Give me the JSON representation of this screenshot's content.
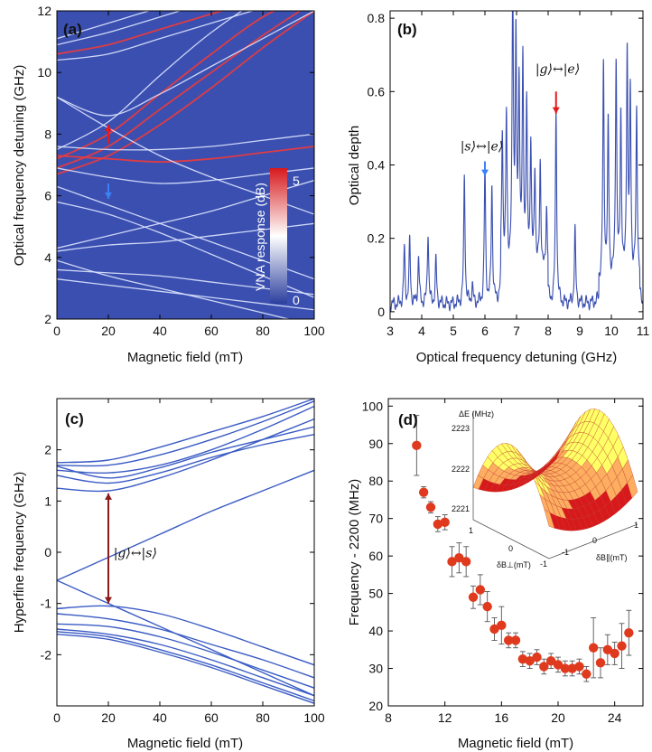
{
  "chart_data": [
    {
      "panel": "(a)",
      "type": "heatmap",
      "xlabel": "Magnetic field (mT)",
      "ylabel": "Optical frequency detuning  (GHz)",
      "xlim": [
        0,
        100
      ],
      "ylim": [
        2,
        12
      ],
      "xticks": [
        0,
        20,
        40,
        60,
        80,
        100
      ],
      "yticks": [
        2,
        4,
        6,
        8,
        10,
        12
      ],
      "colorbar": {
        "label": "VNA response (dB)",
        "min": 0,
        "max": 5,
        "ticks": [
          0,
          5
        ],
        "colors": [
          "#2c3f9e",
          "#ffffff",
          "#d7191c"
        ]
      },
      "background_color": "#3a4fb0",
      "line_color": "#dfe6ff",
      "hot_color": "#f03a3a",
      "lines": [
        {
          "x": [
            0,
            20,
            40,
            60,
            80,
            100
          ],
          "y": [
            6.7,
            7.3,
            8.3,
            9.5,
            10.8,
            12.0
          ],
          "strength": "hot"
        },
        {
          "x": [
            0,
            20,
            40,
            60,
            80,
            100
          ],
          "y": [
            6.9,
            7.6,
            8.8,
            10.0,
            11.2,
            12.3
          ],
          "strength": "hot"
        },
        {
          "x": [
            0,
            20,
            40,
            60,
            80,
            100
          ],
          "y": [
            7.2,
            8.0,
            9.3,
            10.6,
            11.8,
            12.6
          ],
          "strength": "hot"
        },
        {
          "x": [
            0,
            20,
            40,
            60,
            80,
            100
          ],
          "y": [
            7.5,
            8.4,
            9.9,
            11.3,
            12.4,
            13.0
          ],
          "strength": "normal"
        },
        {
          "x": [
            0,
            20,
            40,
            60,
            80,
            100
          ],
          "y": [
            9.2,
            8.6,
            9.3,
            10.2,
            11.1,
            12.0
          ],
          "strength": "normal"
        },
        {
          "x": [
            0,
            20,
            40,
            60,
            80,
            100
          ],
          "y": [
            10.4,
            10.6,
            11.1,
            11.6,
            12.1,
            12.6
          ],
          "strength": "normal"
        },
        {
          "x": [
            0,
            20,
            40,
            60,
            80,
            100
          ],
          "y": [
            10.6,
            10.9,
            11.4,
            11.9,
            12.4,
            12.9
          ],
          "strength": "hot"
        },
        {
          "x": [
            0,
            20,
            40,
            60,
            80,
            100
          ],
          "y": [
            10.9,
            11.3,
            11.8,
            12.3,
            12.7,
            13.1
          ],
          "strength": "normal"
        },
        {
          "x": [
            0,
            20,
            40,
            60,
            80,
            100
          ],
          "y": [
            11.1,
            11.6,
            12.1,
            12.5,
            12.9,
            13.3
          ],
          "strength": "normal"
        },
        {
          "x": [
            0,
            20,
            40,
            60,
            80,
            100
          ],
          "y": [
            7.3,
            7.2,
            7.1,
            7.2,
            7.4,
            7.6
          ],
          "strength": "hot"
        },
        {
          "x": [
            0,
            20,
            40,
            60,
            80,
            100
          ],
          "y": [
            7.6,
            7.5,
            7.5,
            7.6,
            7.8,
            8.0
          ],
          "strength": "normal"
        },
        {
          "x": [
            0,
            20,
            40,
            60,
            80,
            100
          ],
          "y": [
            6.9,
            6.6,
            6.4,
            6.5,
            6.7,
            6.9
          ],
          "strength": "normal"
        },
        {
          "x": [
            0,
            20,
            40,
            60,
            80,
            100
          ],
          "y": [
            9.2,
            8.2,
            7.3,
            6.6,
            6.0,
            5.4
          ],
          "strength": "normal"
        },
        {
          "x": [
            0,
            20,
            40,
            60,
            80,
            100
          ],
          "y": [
            6.3,
            5.7,
            5.1,
            4.5,
            3.9,
            3.3
          ],
          "strength": "normal"
        },
        {
          "x": [
            0,
            20,
            40,
            60,
            80,
            100
          ],
          "y": [
            5.8,
            5.4,
            4.8,
            4.1,
            3.4,
            2.7
          ],
          "strength": "normal"
        },
        {
          "x": [
            0,
            20,
            40,
            60,
            80,
            100
          ],
          "y": [
            4.3,
            4.7,
            5.1,
            5.5,
            6.0,
            6.5
          ],
          "strength": "normal"
        },
        {
          "x": [
            0,
            20,
            40,
            60,
            80,
            100
          ],
          "y": [
            3.6,
            3.5,
            3.4,
            3.2,
            3.0,
            2.8
          ],
          "strength": "normal"
        },
        {
          "x": [
            0,
            20,
            40,
            60,
            80,
            100
          ],
          "y": [
            3.9,
            3.4,
            3.0,
            2.6,
            2.2,
            1.8
          ],
          "strength": "normal"
        },
        {
          "x": [
            0,
            20,
            40,
            60,
            80,
            100
          ],
          "y": [
            3.3,
            3.1,
            2.9,
            2.7,
            2.5,
            2.3
          ],
          "strength": "normal"
        },
        {
          "x": [
            0,
            20,
            40,
            60,
            80,
            100
          ],
          "y": [
            4.2,
            4.4,
            4.5,
            4.7,
            4.9,
            5.1
          ],
          "strength": "normal"
        }
      ],
      "arrows": [
        {
          "x": 20,
          "y_from": 7.7,
          "y_to": 8.3,
          "color": "#e41a1c"
        },
        {
          "x": 20,
          "y_from": 6.4,
          "y_to": 5.9,
          "color": "#3b82f6"
        }
      ]
    },
    {
      "panel": "(b)",
      "type": "line",
      "xlabel": "Optical frequency detuning (GHz)",
      "ylabel": "Optical depth",
      "xlim": [
        3,
        11
      ],
      "ylim": [
        -0.02,
        0.82
      ],
      "xticks": [
        3,
        4,
        5,
        6,
        7,
        8,
        9,
        10,
        11
      ],
      "yticks": [
        0,
        0.2,
        0.4,
        0.6,
        0.8
      ],
      "color": "#3a4fb0",
      "baseline": 0.02,
      "peaks": [
        {
          "x": 3.45,
          "h": 0.15
        },
        {
          "x": 3.62,
          "h": 0.17
        },
        {
          "x": 3.9,
          "h": 0.13
        },
        {
          "x": 4.2,
          "h": 0.2
        },
        {
          "x": 4.45,
          "h": 0.12
        },
        {
          "x": 5.35,
          "h": 0.35
        },
        {
          "x": 5.6,
          "h": 0.05
        },
        {
          "x": 6.0,
          "h": 0.37
        },
        {
          "x": 6.22,
          "h": 0.32
        },
        {
          "x": 6.55,
          "h": 0.38
        },
        {
          "x": 6.68,
          "h": 0.42
        },
        {
          "x": 6.88,
          "h": 0.78
        },
        {
          "x": 6.98,
          "h": 0.6
        },
        {
          "x": 7.08,
          "h": 0.5
        },
        {
          "x": 7.2,
          "h": 0.55
        },
        {
          "x": 7.32,
          "h": 0.44
        },
        {
          "x": 7.45,
          "h": 0.35
        },
        {
          "x": 7.58,
          "h": 0.28
        },
        {
          "x": 7.75,
          "h": 0.3
        },
        {
          "x": 7.95,
          "h": 0.18
        },
        {
          "x": 8.25,
          "h": 0.53
        },
        {
          "x": 8.85,
          "h": 0.2
        },
        {
          "x": 9.75,
          "h": 0.58
        },
        {
          "x": 9.9,
          "h": 0.42
        },
        {
          "x": 10.15,
          "h": 0.6
        },
        {
          "x": 10.3,
          "h": 0.45
        },
        {
          "x": 10.5,
          "h": 0.62
        },
        {
          "x": 10.6,
          "h": 0.5
        },
        {
          "x": 10.8,
          "h": 0.47
        }
      ],
      "annotations": [
        {
          "text": "|s⟩↔|e⟩",
          "x": 5.9,
          "y": 0.44
        },
        {
          "text": "|g⟩↔|e⟩",
          "x": 8.3,
          "y": 0.65
        }
      ],
      "arrows": [
        {
          "x": 6.0,
          "y_from": 0.41,
          "y_to": 0.37,
          "color": "#3b82f6"
        },
        {
          "x": 8.25,
          "y_from": 0.6,
          "y_to": 0.54,
          "color": "#e41a1c"
        }
      ]
    },
    {
      "panel": "(c)",
      "type": "line",
      "xlabel": "Magnetic field (mT)",
      "ylabel": "Hyperfine frequency  (GHz)",
      "xlim": [
        0,
        100
      ],
      "ylim": [
        -3,
        3
      ],
      "xticks": [
        0,
        20,
        40,
        60,
        80,
        100
      ],
      "yticks": [
        -2,
        -1,
        0,
        1,
        2
      ],
      "color": "#3a5bc4",
      "series": [
        {
          "x": [
            0,
            20,
            40,
            60,
            80,
            100
          ],
          "y": [
            1.25,
            1.2,
            1.45,
            1.8,
            2.2,
            2.6
          ]
        },
        {
          "x": [
            0,
            20,
            40,
            60,
            80,
            100
          ],
          "y": [
            1.6,
            1.55,
            1.7,
            2.0,
            2.4,
            2.85
          ]
        },
        {
          "x": [
            0,
            20,
            40,
            60,
            80,
            100
          ],
          "y": [
            1.7,
            1.7,
            1.9,
            2.2,
            2.55,
            2.95
          ]
        },
        {
          "x": [
            0,
            20,
            40,
            60,
            80,
            100
          ],
          "y": [
            1.75,
            1.8,
            2.05,
            2.35,
            2.65,
            3.0
          ]
        },
        {
          "x": [
            0,
            20,
            40,
            60,
            80,
            100
          ],
          "y": [
            1.5,
            1.35,
            1.55,
            1.85,
            2.1,
            2.3
          ]
        },
        {
          "x": [
            0,
            20,
            40,
            60,
            80,
            100
          ],
          "y": [
            1.68,
            1.45,
            1.65,
            1.95,
            2.2,
            2.45
          ]
        },
        {
          "x": [
            0,
            20,
            40,
            60,
            80,
            100
          ],
          "y": [
            -0.55,
            -0.1,
            0.35,
            0.8,
            1.2,
            1.6
          ]
        },
        {
          "x": [
            0,
            20,
            40,
            60,
            80,
            100
          ],
          "y": [
            -0.55,
            -1.0,
            -1.45,
            -1.9,
            -2.35,
            -2.8
          ]
        },
        {
          "x": [
            0,
            20,
            40,
            60,
            80,
            100
          ],
          "y": [
            -1.1,
            -1.05,
            -1.2,
            -1.5,
            -1.85,
            -2.2
          ]
        },
        {
          "x": [
            0,
            20,
            40,
            60,
            80,
            100
          ],
          "y": [
            -1.2,
            -1.3,
            -1.5,
            -1.8,
            -2.1,
            -2.45
          ]
        },
        {
          "x": [
            0,
            20,
            40,
            60,
            80,
            100
          ],
          "y": [
            -1.4,
            -1.45,
            -1.65,
            -1.95,
            -2.3,
            -2.65
          ]
        },
        {
          "x": [
            0,
            20,
            40,
            60,
            80,
            100
          ],
          "y": [
            -1.5,
            -1.6,
            -1.8,
            -2.1,
            -2.45,
            -2.8
          ]
        },
        {
          "x": [
            0,
            20,
            40,
            60,
            80,
            100
          ],
          "y": [
            -1.55,
            -1.65,
            -1.9,
            -2.2,
            -2.55,
            -2.9
          ]
        },
        {
          "x": [
            0,
            20,
            40,
            60,
            80,
            100
          ],
          "y": [
            -1.6,
            -1.7,
            -1.95,
            -2.25,
            -2.6,
            -2.95
          ]
        }
      ],
      "annotations": [
        {
          "text": "|g⟩↔|s⟩",
          "x": 22,
          "y": -0.1
        }
      ],
      "arrows": [
        {
          "x": 20,
          "y_from": 1.15,
          "y_to": -1.0,
          "color": "#8b1a1a",
          "double": true
        }
      ]
    },
    {
      "panel": "(d)",
      "type": "scatter",
      "xlabel": "Magnetic field (mT)",
      "ylabel": "Frequency - 2200 (MHz)",
      "xlim": [
        8,
        26
      ],
      "ylim": [
        20,
        102
      ],
      "xticks": [
        8,
        12,
        16,
        20,
        24
      ],
      "yticks": [
        20,
        30,
        40,
        50,
        60,
        70,
        80,
        90,
        100
      ],
      "color": "#e03a1e",
      "points": [
        {
          "x": 10.0,
          "y": 89.5,
          "err": 8
        },
        {
          "x": 10.5,
          "y": 77,
          "err": 1.5
        },
        {
          "x": 11.0,
          "y": 73,
          "err": 1.5
        },
        {
          "x": 11.5,
          "y": 68.5,
          "err": 2
        },
        {
          "x": 12.0,
          "y": 69,
          "err": 2
        },
        {
          "x": 12.5,
          "y": 58.5,
          "err": 4
        },
        {
          "x": 13.0,
          "y": 59.5,
          "err": 4
        },
        {
          "x": 13.5,
          "y": 58.5,
          "err": 4
        },
        {
          "x": 14.0,
          "y": 49,
          "err": 3
        },
        {
          "x": 14.5,
          "y": 51,
          "err": 4
        },
        {
          "x": 15.0,
          "y": 46.5,
          "err": 4
        },
        {
          "x": 15.5,
          "y": 40.5,
          "err": 3
        },
        {
          "x": 16.0,
          "y": 41.5,
          "err": 5
        },
        {
          "x": 16.5,
          "y": 37.5,
          "err": 2
        },
        {
          "x": 17.0,
          "y": 37.5,
          "err": 2
        },
        {
          "x": 17.5,
          "y": 32.5,
          "err": 2
        },
        {
          "x": 18.0,
          "y": 32,
          "err": 2
        },
        {
          "x": 18.5,
          "y": 33,
          "err": 2
        },
        {
          "x": 19.0,
          "y": 30.5,
          "err": 2
        },
        {
          "x": 19.5,
          "y": 32,
          "err": 2
        },
        {
          "x": 20.0,
          "y": 31,
          "err": 2
        },
        {
          "x": 20.5,
          "y": 30,
          "err": 2
        },
        {
          "x": 21.0,
          "y": 30,
          "err": 2
        },
        {
          "x": 21.5,
          "y": 30.5,
          "err": 2
        },
        {
          "x": 22.0,
          "y": 28.5,
          "err": 2
        },
        {
          "x": 22.5,
          "y": 35.5,
          "err": 8
        },
        {
          "x": 23.0,
          "y": 31.5,
          "err": 4
        },
        {
          "x": 23.5,
          "y": 35,
          "err": 4
        },
        {
          "x": 24.0,
          "y": 34,
          "err": 3
        },
        {
          "x": 24.5,
          "y": 36,
          "err": 6
        },
        {
          "x": 25.0,
          "y": 39.5,
          "err": 6
        }
      ],
      "inset": {
        "type": "surface",
        "zlabel": "ΔE  (MHz)",
        "zticks": [
          "2223",
          "2222",
          "2221"
        ],
        "xlabel": "δB⊥(mT)",
        "ylabel": "δB∥(mT)",
        "xticks": [
          "1",
          "0",
          "-1"
        ],
        "yticks": [
          "-1",
          "0",
          "1"
        ],
        "colors": [
          "#d7191c",
          "#fdae61",
          "#ffff66"
        ]
      }
    }
  ],
  "panel_labels": [
    "(a)",
    "(b)",
    "(c)",
    "(d)"
  ]
}
